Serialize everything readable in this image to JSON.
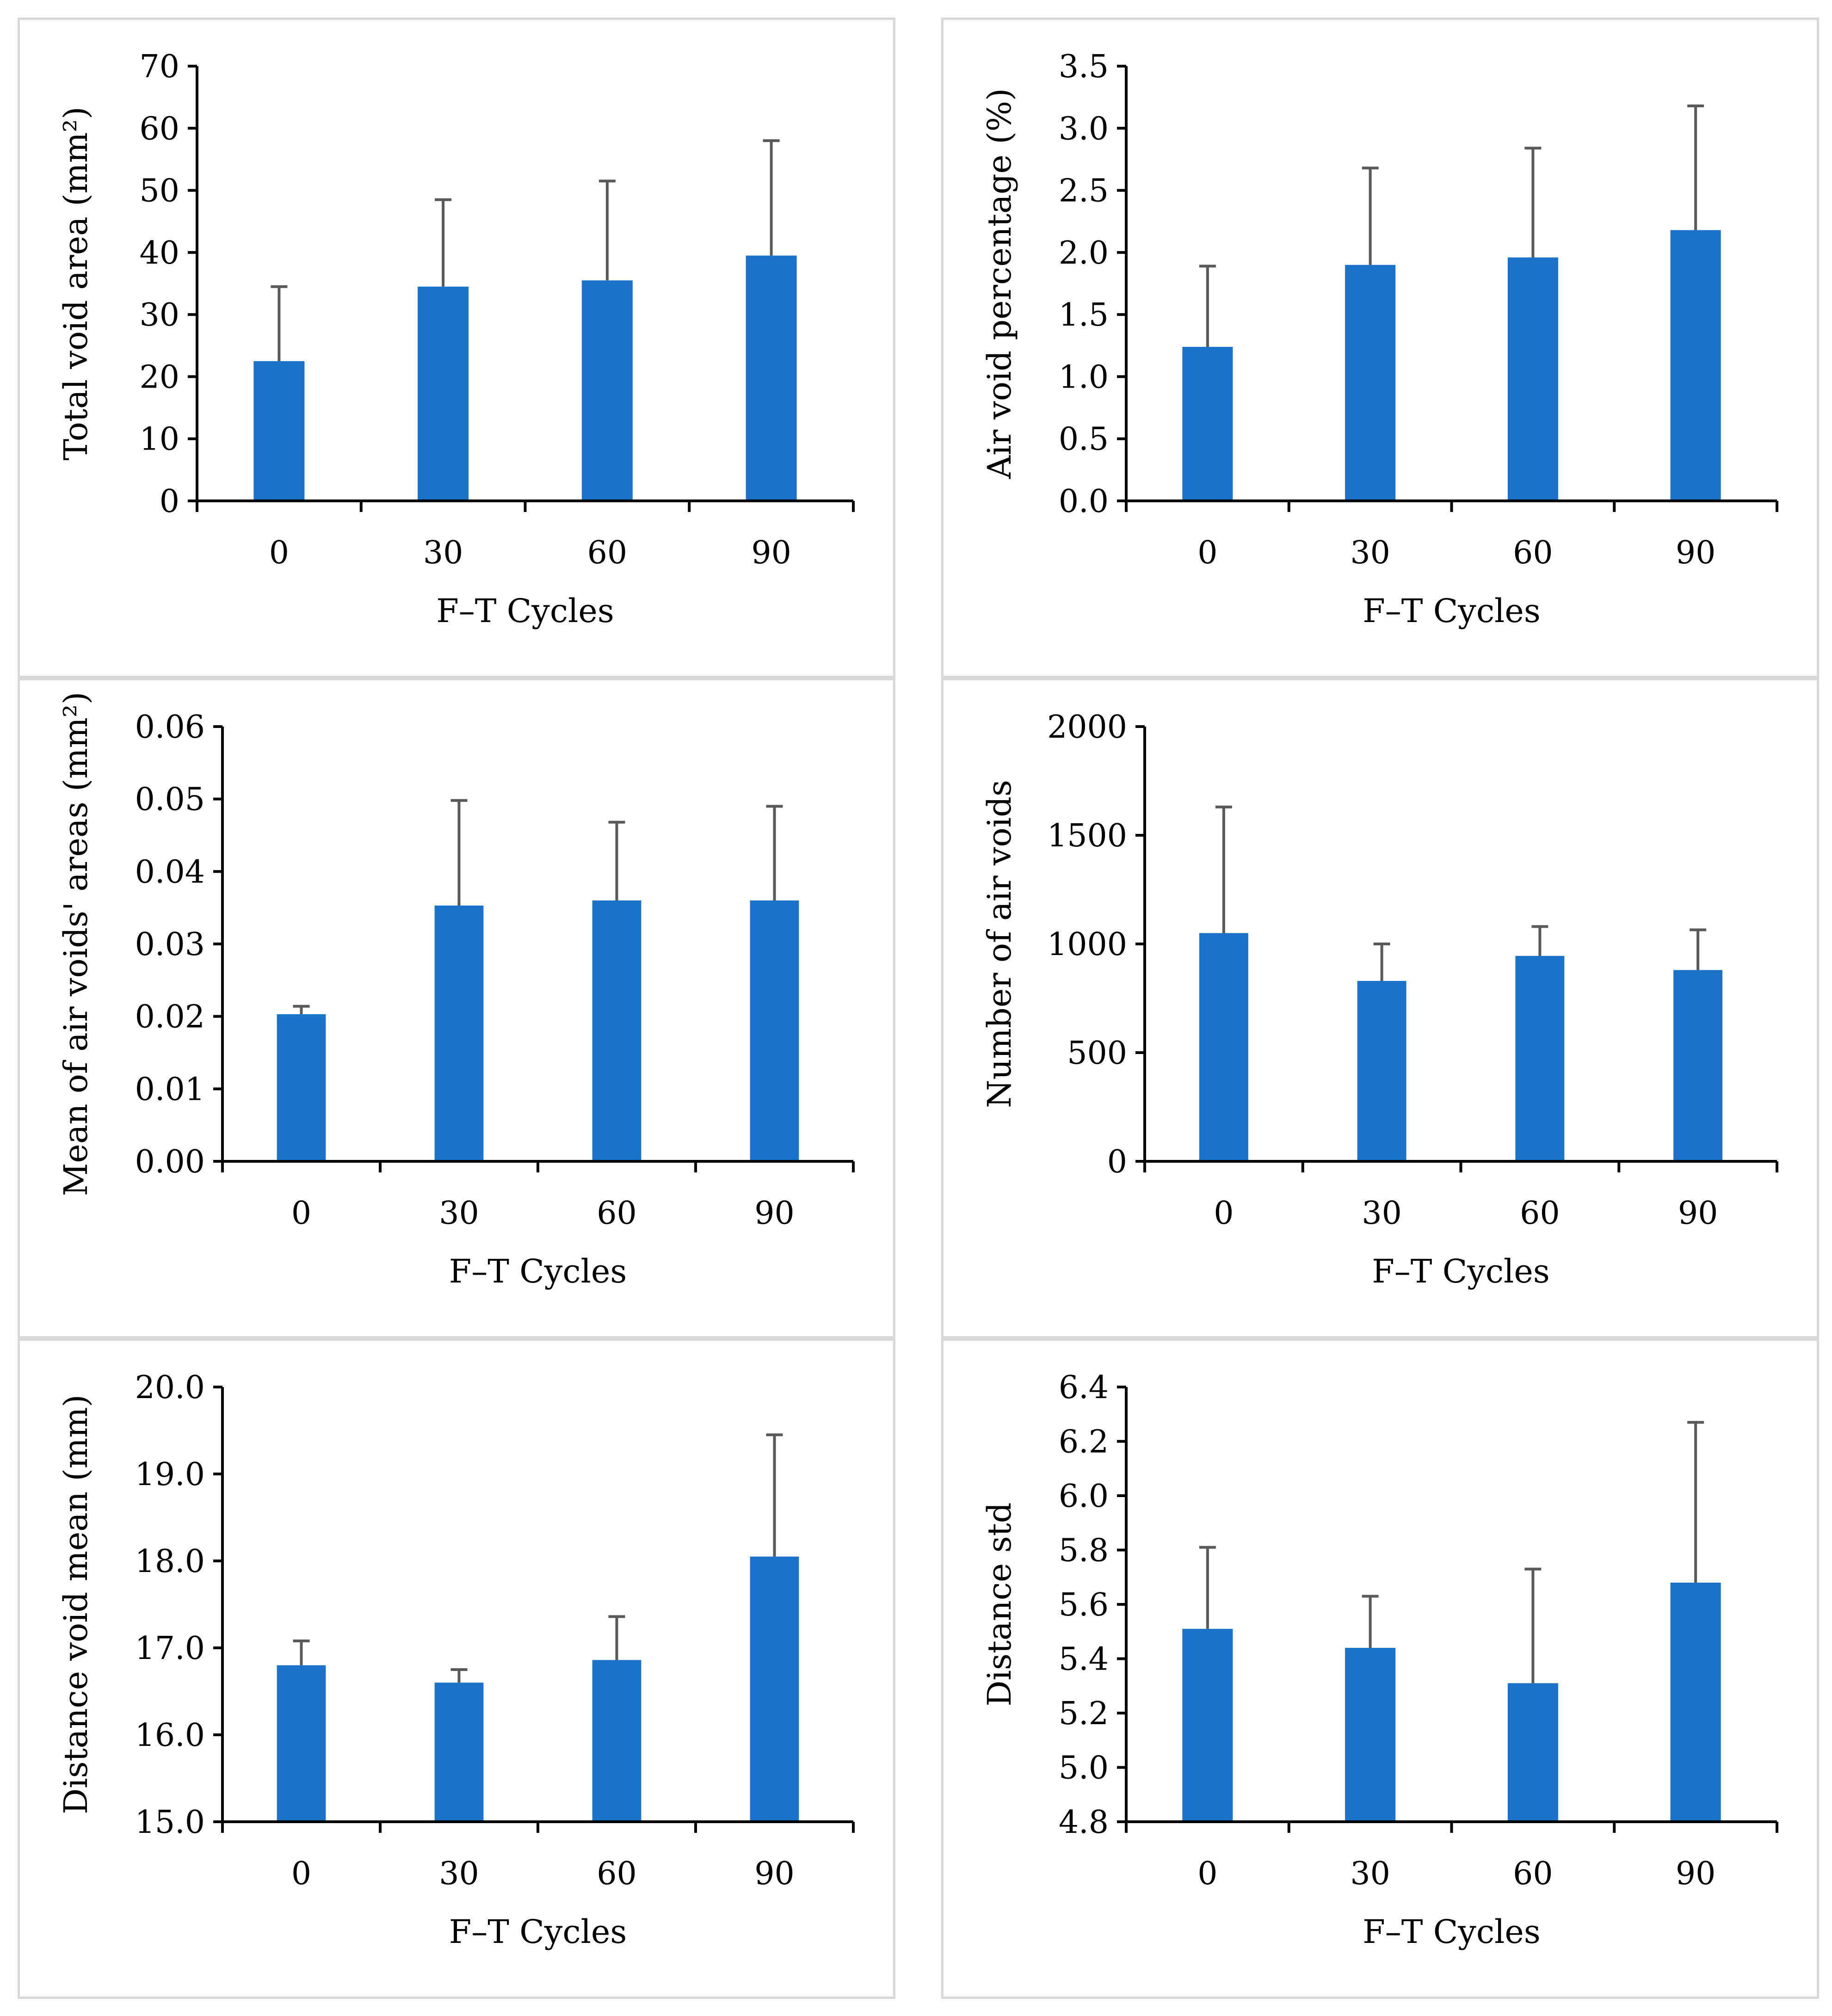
{
  "colors": {
    "bar": "#1a73c8",
    "error": "#595959",
    "axis": "#000000",
    "border": "#d9d9d9"
  },
  "chart_data": [
    {
      "type": "bar",
      "categories": [
        "0",
        "30",
        "60",
        "90"
      ],
      "values": [
        22.5,
        34.5,
        35.5,
        39.5
      ],
      "error_plus": [
        12.0,
        14.0,
        16.0,
        18.5
      ],
      "ylim": [
        0,
        70
      ],
      "yticks": [
        "0",
        "10",
        "20",
        "30",
        "40",
        "50",
        "60",
        "70"
      ],
      "xlabel": "F–T Cycles",
      "ylabel": "Total void area (mm²)"
    },
    {
      "type": "bar",
      "categories": [
        "0",
        "30",
        "60",
        "90"
      ],
      "values": [
        1.24,
        1.9,
        1.96,
        2.18
      ],
      "error_plus": [
        0.65,
        0.78,
        0.88,
        1.0
      ],
      "ylim": [
        0,
        3.5
      ],
      "yticks": [
        "0.0",
        "0.5",
        "1.0",
        "1.5",
        "2.0",
        "2.5",
        "3.0",
        "3.5"
      ],
      "xlabel": "F–T Cycles",
      "ylabel": "Air void percentage (%)"
    },
    {
      "type": "bar",
      "categories": [
        "0",
        "30",
        "60",
        "90"
      ],
      "values": [
        0.0203,
        0.0353,
        0.036,
        0.036
      ],
      "error_plus": [
        0.0011,
        0.0145,
        0.0108,
        0.013
      ],
      "ylim": [
        0,
        0.06
      ],
      "yticks": [
        "0.00",
        "0.01",
        "0.02",
        "0.03",
        "0.04",
        "0.05",
        "0.06"
      ],
      "xlabel": "F–T Cycles",
      "ylabel": "Mean of air voids' areas (mm²)"
    },
    {
      "type": "bar",
      "categories": [
        "0",
        "30",
        "60",
        "90"
      ],
      "values": [
        1050,
        830,
        945,
        880
      ],
      "error_plus": [
        580,
        170,
        135,
        185
      ],
      "ylim": [
        0,
        2000
      ],
      "yticks": [
        "0",
        "500",
        "1000",
        "1500",
        "2000"
      ],
      "xlabel": "F–T Cycles",
      "ylabel": "Number of air voids"
    },
    {
      "type": "bar",
      "categories": [
        "0",
        "30",
        "60",
        "90"
      ],
      "values": [
        16.8,
        16.6,
        16.86,
        18.05
      ],
      "error_plus": [
        0.28,
        0.15,
        0.5,
        1.4
      ],
      "ylim": [
        15.0,
        20.0
      ],
      "yticks": [
        "15.0",
        "16.0",
        "17.0",
        "18.0",
        "19.0",
        "20.0"
      ],
      "xlabel": "F–T Cycles",
      "ylabel": "Distance void mean (mm)"
    },
    {
      "type": "bar",
      "categories": [
        "0",
        "30",
        "60",
        "90"
      ],
      "values": [
        5.51,
        5.44,
        5.31,
        5.68
      ],
      "error_plus": [
        0.3,
        0.19,
        0.42,
        0.59
      ],
      "ylim": [
        4.8,
        6.4
      ],
      "yticks": [
        "4.8",
        "5.0",
        "5.2",
        "5.4",
        "5.6",
        "5.8",
        "6.0",
        "6.2",
        "6.4"
      ],
      "xlabel": "F–T Cycles",
      "ylabel": "Distance std"
    }
  ]
}
